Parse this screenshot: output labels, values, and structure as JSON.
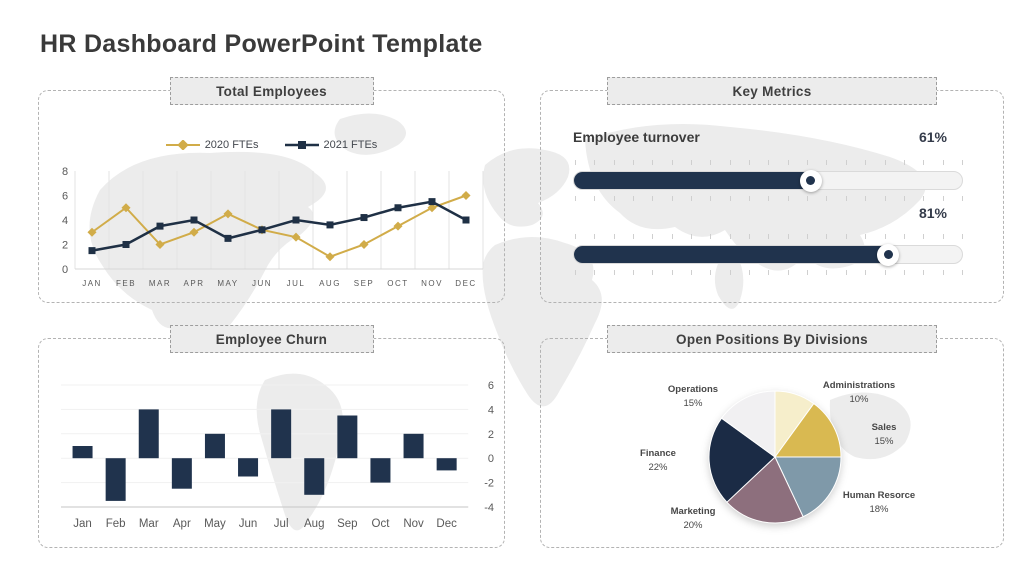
{
  "page": {
    "title": "HR Dashboard PowerPoint Template"
  },
  "panels": {
    "total_employees": {
      "title": "Total Employees"
    },
    "key_metrics": {
      "title": "Key Metrics",
      "metric_label": "Employee turnover",
      "sliders": [
        {
          "value": 61,
          "value_label": "61%"
        },
        {
          "value": 81,
          "value_label": "81%"
        }
      ]
    },
    "employee_churn": {
      "title": "Employee Churn"
    },
    "open_positions": {
      "title": "Open Positions By Divisions"
    }
  },
  "colors": {
    "accent_navy": "#20334d",
    "accent_gold": "#d1ac49",
    "axis_text": "#595959",
    "gridline": "#e3e3e3"
  },
  "chart_data": [
    {
      "type": "line",
      "title": "Total Employees",
      "x": [
        "JAN",
        "FEB",
        "MAR",
        "APR",
        "MAY",
        "JUN",
        "JUL",
        "AUG",
        "SEP",
        "OCT",
        "NOV",
        "DEC"
      ],
      "series": [
        {
          "name": "2020 FTEs",
          "color": "#d1ac49",
          "marker": "diamond",
          "values": [
            3,
            5,
            2,
            3,
            4.5,
            3.2,
            2.6,
            1,
            2,
            3.5,
            5,
            6
          ]
        },
        {
          "name": "2021 FTEs",
          "color": "#1f3045",
          "marker": "square",
          "values": [
            1.5,
            2,
            3.5,
            4,
            2.5,
            3.2,
            4,
            3.6,
            4.2,
            5,
            5.5,
            4
          ]
        }
      ],
      "ylim": [
        0,
        8
      ],
      "yticks": [
        0,
        2,
        4,
        6,
        8
      ],
      "grid": "vertical",
      "legend_position": "top"
    },
    {
      "type": "bar",
      "title": "Employee Churn",
      "categories": [
        "Jan",
        "Feb",
        "Mar",
        "Apr",
        "May",
        "Jun",
        "Jul",
        "Aug",
        "Sep",
        "Oct",
        "Nov",
        "Dec"
      ],
      "values": [
        1,
        -3.5,
        4,
        -2.5,
        2,
        -1.5,
        4,
        -3,
        3.5,
        -2,
        2,
        -1
      ],
      "color": "#20334d",
      "ylim": [
        -4,
        6
      ],
      "yticks": [
        6,
        4,
        2,
        0,
        -2,
        -4
      ],
      "yaxis_side": "right"
    },
    {
      "type": "pie",
      "title": "Open Positions By Divisions",
      "direction": "clockwise",
      "start_angle_deg": 0,
      "slices": [
        {
          "label": "Administrations",
          "value": 10,
          "pct_label": "10%",
          "color": "#f6eecb"
        },
        {
          "label": "Sales",
          "value": 15,
          "pct_label": "15%",
          "color": "#d9b951"
        },
        {
          "label": "Human Resorce",
          "value": 18,
          "pct_label": "18%",
          "color": "#7f99a9"
        },
        {
          "label": "Marketing",
          "value": 20,
          "pct_label": "20%",
          "color": "#8d6f7d"
        },
        {
          "label": "Finance",
          "value": 22,
          "pct_label": "22%",
          "color": "#1b2b45"
        },
        {
          "label": "Operations",
          "value": 15,
          "pct_label": "15%",
          "color": "#f1f0f2"
        }
      ]
    }
  ]
}
